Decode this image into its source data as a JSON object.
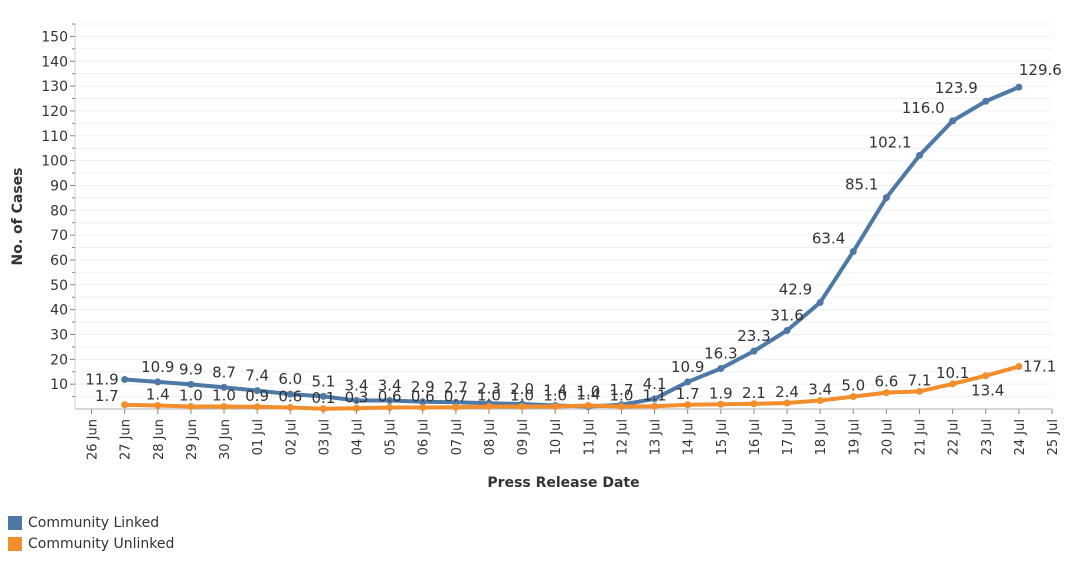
{
  "chart_data": {
    "type": "line",
    "title": "",
    "xlabel": "Press Release Date",
    "ylabel": "No. of Cases",
    "ylim": [
      0,
      155
    ],
    "yticks": [
      10,
      20,
      30,
      40,
      50,
      60,
      70,
      80,
      90,
      100,
      110,
      120,
      130,
      140,
      150
    ],
    "grid": true,
    "categories": [
      "26 Jun",
      "27 Jun",
      "28 Jun",
      "29 Jun",
      "30 Jun",
      "01 Jul",
      "02 Jul",
      "03 Jul",
      "04 Jul",
      "05 Jul",
      "06 Jul",
      "07 Jul",
      "08 Jul",
      "09 Jul",
      "10 Jul",
      "11 Jul",
      "12 Jul",
      "13 Jul",
      "14 Jul",
      "15 Jul",
      "16 Jul",
      "17 Jul",
      "18 Jul",
      "19 Jul",
      "20 Jul",
      "21 Jul",
      "22 Jul",
      "23 Jul",
      "24 Jul",
      "25 Jul"
    ],
    "series": [
      {
        "name": "Community Linked",
        "color": "#4e79a7",
        "values": [
          null,
          11.9,
          10.9,
          9.9,
          8.7,
          7.4,
          6.0,
          5.1,
          3.4,
          3.4,
          2.9,
          2.7,
          2.3,
          2.0,
          1.4,
          1.0,
          1.7,
          4.1,
          10.9,
          16.3,
          23.3,
          31.6,
          42.9,
          63.4,
          85.1,
          102.1,
          116.0,
          123.9,
          129.6,
          null
        ],
        "labels": [
          null,
          "11.9",
          "10.9",
          "9.9",
          "8.7",
          "7.4",
          "6.0",
          "5.1",
          "3.4",
          "3.4",
          "2.9",
          "2.7",
          "2.3",
          "2.0",
          "1.4",
          "1.0",
          "1.7",
          "4.1",
          "10.9",
          "16.3",
          "23.3",
          "31.6",
          "42.9",
          "63.4",
          "85.1",
          "102.1",
          "116.0",
          "123.9",
          "129.6",
          null
        ]
      },
      {
        "name": "Community Unlinked",
        "color": "#f28e2b",
        "values": [
          null,
          1.7,
          1.4,
          1.0,
          1.0,
          0.9,
          0.6,
          0.1,
          0.3,
          0.6,
          0.6,
          0.7,
          1.0,
          1.0,
          1.0,
          1.4,
          1.0,
          1.1,
          1.7,
          1.9,
          2.1,
          2.4,
          3.4,
          5.0,
          6.6,
          7.1,
          10.1,
          13.4,
          17.1,
          null
        ],
        "labels": [
          null,
          "1.7",
          "1.4",
          "1.0",
          "1.0",
          "0.9",
          "0.6",
          "0.1",
          "0.3",
          "0.6",
          "0.6",
          "0.7",
          "1.0",
          "1.0",
          "1.0",
          "1.4",
          "1.0",
          "1.1",
          "1.7",
          "1.9",
          "2.1",
          "2.4",
          "3.4",
          "5.0",
          "6.6",
          "7.1",
          "10.1",
          "13.4",
          "17.1",
          null
        ]
      }
    ]
  },
  "legend": {
    "items": [
      {
        "label": "Community Linked",
        "color": "#4e79a7"
      },
      {
        "label": "Community Unlinked",
        "color": "#f28e2b"
      }
    ]
  }
}
